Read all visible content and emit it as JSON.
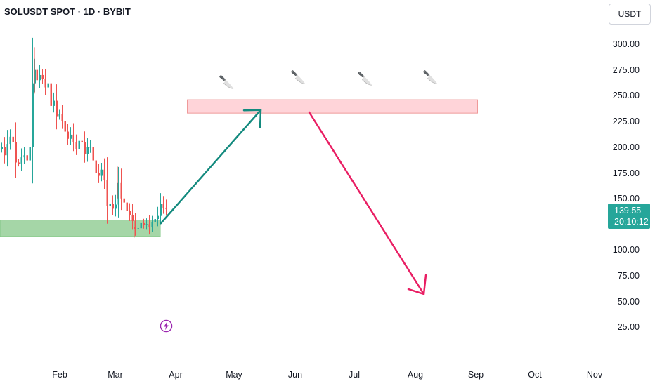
{
  "chart_title": "SOLUSDT SPOT · 1D · BYBIT",
  "currency": "USDT",
  "last_price": "139.55",
  "countdown": "20:10:12",
  "price_ticks": [
    "300.00",
    "275.00",
    "250.00",
    "225.00",
    "200.00",
    "175.00",
    "150.00",
    "100.00",
    "75.00",
    "50.00",
    "25.00"
  ],
  "time_ticks": [
    "Feb",
    "Mar",
    "Apr",
    "May",
    "Jun",
    "Jul",
    "Aug",
    "Sep",
    "Oct",
    "Nov"
  ],
  "icons": {
    "knife": "knife-icon",
    "bolt": "lightning-icon"
  },
  "colors": {
    "up": "#26a69a",
    "down": "#ef5350",
    "support_zone": "#a5d6a7",
    "resistance_zone": "#ffcdd2",
    "arrow_up": "#138a7e",
    "arrow_down": "#e91e63",
    "badge": "#26a69a",
    "bolt": "#9c27b0"
  },
  "chart_data": {
    "type": "candlestick",
    "title": "SOLUSDT SPOT · 1D · BYBIT",
    "ylim": [
      0,
      310
    ],
    "grid": false,
    "zones": [
      {
        "kind": "support",
        "low": 113,
        "high": 129
      },
      {
        "kind": "resistance",
        "low": 233,
        "high": 246
      }
    ],
    "projection": {
      "rise_to": 236,
      "fall_to": 57
    }
  }
}
